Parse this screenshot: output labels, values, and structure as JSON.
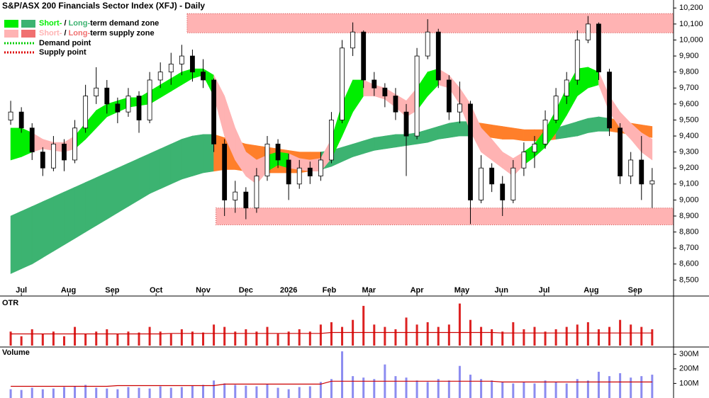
{
  "chart_data": {
    "type": "candlestick",
    "title": "S&P/ASX 200 Financials Sector Index (XFJ) - Daily",
    "legend": [
      {
        "parts": [
          "Short-",
          " / ",
          "Long-",
          "term demand zone"
        ],
        "colors": [
          "#00ee00",
          "#3cb371"
        ]
      },
      {
        "parts": [
          "Short-",
          " / ",
          "Long-",
          "term supply zone"
        ],
        "colors": [
          "#ffb3b3",
          "#f07070"
        ]
      },
      {
        "text": "Demand point",
        "color": "#00cc00"
      },
      {
        "text": "Supply point",
        "color": "#dd0000"
      }
    ],
    "x": [
      0,
      1,
      2,
      3,
      4,
      5,
      6,
      7,
      8,
      9,
      10,
      11,
      12,
      13,
      14,
      15,
      16,
      17,
      18,
      19,
      20,
      21,
      22,
      23,
      24,
      25,
      26,
      27,
      28,
      29,
      30,
      31,
      32,
      33,
      34,
      35,
      36,
      37,
      38,
      39,
      40,
      41,
      42,
      43,
      44,
      45,
      46,
      47,
      48,
      49,
      50,
      51,
      52,
      53,
      54,
      55,
      56,
      57,
      58,
      59,
      60
    ],
    "xlim": [
      -1,
      62
    ],
    "xticks": [
      {
        "value": 1,
        "label": "Jul"
      },
      {
        "value": 5.4,
        "label": "Aug"
      },
      {
        "value": 9.5,
        "label": "Sep"
      },
      {
        "value": 13.6,
        "label": "Oct"
      },
      {
        "value": 18,
        "label": "Nov"
      },
      {
        "value": 22,
        "label": "Dec"
      },
      {
        "value": 26,
        "label": "2026"
      },
      {
        "value": 29.8,
        "label": "Feb"
      },
      {
        "value": 33.5,
        "label": "Mar"
      },
      {
        "value": 38,
        "label": "Apr"
      },
      {
        "value": 42.2,
        "label": "May"
      },
      {
        "value": 45.9,
        "label": "Jun"
      },
      {
        "value": 49.9,
        "label": "Jul"
      },
      {
        "value": 54.3,
        "label": "Aug"
      },
      {
        "value": 58.4,
        "label": "Sep"
      }
    ],
    "ohlc": [
      [
        9500,
        9620,
        9470,
        9550
      ],
      [
        9550,
        9580,
        9420,
        9450
      ],
      [
        9450,
        9480,
        9250,
        9300
      ],
      [
        9300,
        9330,
        9150,
        9200
      ],
      [
        9200,
        9400,
        9180,
        9350
      ],
      [
        9350,
        9380,
        9180,
        9250
      ],
      [
        9250,
        9500,
        9230,
        9450
      ],
      [
        9450,
        9720,
        9420,
        9650
      ],
      [
        9650,
        9830,
        9600,
        9700
      ],
      [
        9700,
        9750,
        9540,
        9600
      ],
      [
        9600,
        9640,
        9480,
        9550
      ],
      [
        9550,
        9700,
        9520,
        9650
      ],
      [
        9650,
        9680,
        9420,
        9500
      ],
      [
        9500,
        9800,
        9480,
        9750
      ],
      [
        9750,
        9860,
        9700,
        9800
      ],
      [
        9800,
        9920,
        9720,
        9850
      ],
      [
        9850,
        9970,
        9780,
        9900
      ],
      [
        9900,
        9940,
        9740,
        9800
      ],
      [
        9800,
        9880,
        9700,
        9750
      ],
      [
        9750,
        9760,
        9300,
        9350
      ],
      [
        9350,
        9380,
        8900,
        9000
      ],
      [
        9000,
        9120,
        8920,
        9050
      ],
      [
        9050,
        9080,
        8880,
        8950
      ],
      [
        8950,
        9200,
        8920,
        9150
      ],
      [
        9150,
        9400,
        9120,
        9350
      ],
      [
        9350,
        9380,
        9200,
        9250
      ],
      [
        9250,
        9290,
        9000,
        9100
      ],
      [
        9100,
        9250,
        9070,
        9200
      ],
      [
        9200,
        9240,
        9100,
        9150
      ],
      [
        9150,
        9300,
        9120,
        9250
      ],
      [
        9250,
        9550,
        9230,
        9500
      ],
      [
        9500,
        10000,
        9480,
        9950
      ],
      [
        9950,
        10110,
        9900,
        10050
      ],
      [
        10050,
        10060,
        9700,
        9750
      ],
      [
        9750,
        9800,
        9650,
        9700
      ],
      [
        9700,
        9730,
        9580,
        9650
      ],
      [
        9650,
        9700,
        9500,
        9550
      ],
      [
        9550,
        9600,
        9150,
        9400
      ],
      [
        9400,
        9950,
        9380,
        9900
      ],
      [
        9900,
        10130,
        9880,
        10050
      ],
      [
        10050,
        10070,
        9700,
        9750
      ],
      [
        9750,
        9780,
        9500,
        9550
      ],
      [
        9550,
        9740,
        9480,
        9600
      ],
      [
        9600,
        9620,
        8850,
        9000
      ],
      [
        9000,
        9280,
        8980,
        9200
      ],
      [
        9200,
        9230,
        9050,
        9100
      ],
      [
        9100,
        9150,
        8900,
        9000
      ],
      [
        9000,
        9250,
        8980,
        9200
      ],
      [
        9200,
        9360,
        9150,
        9300
      ],
      [
        9300,
        9400,
        9200,
        9350
      ],
      [
        9350,
        9560,
        9320,
        9500
      ],
      [
        9500,
        9700,
        9480,
        9650
      ],
      [
        9650,
        9800,
        9600,
        9750
      ],
      [
        9750,
        10060,
        9720,
        10000
      ],
      [
        10000,
        10150,
        9980,
        10100
      ],
      [
        10100,
        10110,
        9750,
        9800
      ],
      [
        9800,
        9820,
        9400,
        9450
      ],
      [
        9450,
        9480,
        9100,
        9150
      ],
      [
        9150,
        9300,
        9100,
        9250
      ],
      [
        9250,
        9400,
        9000,
        9100
      ],
      [
        9100,
        9200,
        8950,
        9120
      ]
    ],
    "ylim": [
      8400,
      10250
    ],
    "yticks": [
      {
        "value": 8500,
        "label": "8,500"
      },
      {
        "value": 8600,
        "label": "8,600"
      },
      {
        "value": 8700,
        "label": "8,700"
      },
      {
        "value": 8800,
        "label": "8,800"
      },
      {
        "value": 8900,
        "label": "8,900"
      },
      {
        "value": 9000,
        "label": "9,000"
      },
      {
        "value": 9100,
        "label": "9,100"
      },
      {
        "value": 9200,
        "label": "9,200"
      },
      {
        "value": 9300,
        "label": "9,300"
      },
      {
        "value": 9400,
        "label": "9,400"
      },
      {
        "value": 9500,
        "label": "9,500"
      },
      {
        "value": 9600,
        "label": "9,600"
      },
      {
        "value": 9700,
        "label": "9,700"
      },
      {
        "value": 9800,
        "label": "9,800"
      },
      {
        "value": 9900,
        "label": "9,900"
      },
      {
        "value": 10000,
        "label": "10,000"
      },
      {
        "value": 10100,
        "label": "10,100"
      },
      {
        "value": 10200,
        "label": "10,200"
      }
    ],
    "long_term": {
      "upper": [
        8900,
        8930,
        8960,
        8990,
        9020,
        9050,
        9080,
        9110,
        9140,
        9170,
        9200,
        9230,
        9260,
        9290,
        9320,
        9350,
        9380,
        9400,
        9410,
        9410,
        9390,
        9370,
        9350,
        9340,
        9330,
        9320,
        9310,
        9300,
        9300,
        9300,
        9310,
        9330,
        9350,
        9370,
        9390,
        9400,
        9410,
        9410,
        9420,
        9440,
        9460,
        9480,
        9490,
        9490,
        9480,
        9470,
        9460,
        9450,
        9440,
        9440,
        9440,
        9450,
        9470,
        9490,
        9510,
        9520,
        9510,
        9500,
        9480,
        9470,
        9460
      ],
      "lower": [
        8540,
        8570,
        8600,
        8640,
        8680,
        8720,
        8760,
        8800,
        8840,
        8880,
        8920,
        8960,
        9000,
        9040,
        9070,
        9100,
        9130,
        9150,
        9170,
        9180,
        9190,
        9190,
        9180,
        9170,
        9170,
        9170,
        9170,
        9170,
        9180,
        9190,
        9210,
        9240,
        9270,
        9290,
        9310,
        9320,
        9330,
        9340,
        9350,
        9360,
        9380,
        9390,
        9400,
        9400,
        9400,
        9390,
        9380,
        9380,
        9370,
        9370,
        9370,
        9380,
        9390,
        9400,
        9420,
        9430,
        9430,
        9420,
        9410,
        9400,
        9390
      ],
      "colors": [
        "#3cb371",
        "#3cb371",
        "#3cb371",
        "#3cb371",
        "#3cb371",
        "#3cb371",
        "#3cb371",
        "#3cb371",
        "#3cb371",
        "#3cb371",
        "#3cb371",
        "#3cb371",
        "#3cb371",
        "#3cb371",
        "#3cb371",
        "#3cb371",
        "#3cb371",
        "#3cb371",
        "#3cb371",
        "#ff7f2a",
        "#ff7f2a",
        "#ff7f2a",
        "#ff7f2a",
        "#ff7f2a",
        "#ff7f2a",
        "#ff7f2a",
        "#ff7f2a",
        "#ff7f2a",
        "#ff7f2a",
        "#3cb371",
        "#3cb371",
        "#3cb371",
        "#3cb371",
        "#3cb371",
        "#3cb371",
        "#3cb371",
        "#3cb371",
        "#3cb371",
        "#3cb371",
        "#3cb371",
        "#3cb371",
        "#3cb371",
        "#3cb371",
        "#ff7f2a",
        "#ff7f2a",
        "#ff7f2a",
        "#ff7f2a",
        "#ff7f2a",
        "#ff7f2a",
        "#ff7f2a",
        "#ff7f2a",
        "#3cb371",
        "#3cb371",
        "#3cb371",
        "#3cb371",
        "#3cb371",
        "#ff7f2a",
        "#ff7f2a",
        "#ff7f2a",
        "#ff7f2a",
        "#ff7f2a"
      ]
    },
    "short_term": {
      "upper": [
        9450,
        9450,
        9420,
        9380,
        9360,
        9360,
        9400,
        9480,
        9560,
        9600,
        9620,
        9640,
        9640,
        9680,
        9720,
        9760,
        9800,
        9820,
        9820,
        9780,
        9650,
        9450,
        9300,
        9250,
        9280,
        9300,
        9290,
        9260,
        9250,
        9260,
        9380,
        9600,
        9750,
        9750,
        9720,
        9700,
        9660,
        9620,
        9700,
        9800,
        9820,
        9780,
        9700,
        9600,
        9450,
        9380,
        9300,
        9260,
        9300,
        9350,
        9440,
        9560,
        9700,
        9820,
        9830,
        9800,
        9650,
        9550,
        9480,
        9420,
        9380
      ],
      "lower": [
        9250,
        9270,
        9300,
        9320,
        9310,
        9300,
        9320,
        9380,
        9450,
        9520,
        9550,
        9580,
        9590,
        9600,
        9640,
        9680,
        9720,
        9760,
        9780,
        9650,
        9400,
        9250,
        9150,
        9100,
        9180,
        9220,
        9200,
        9190,
        9180,
        9180,
        9260,
        9400,
        9550,
        9650,
        9650,
        9630,
        9580,
        9520,
        9560,
        9650,
        9720,
        9700,
        9600,
        9430,
        9300,
        9250,
        9200,
        9150,
        9220,
        9270,
        9330,
        9420,
        9530,
        9650,
        9700,
        9720,
        9550,
        9450,
        9380,
        9300,
        9250
      ],
      "colors": [
        "#00ee00",
        "#00ee00",
        "#ffb3b3",
        "#ffb3b3",
        "#ffb3b3",
        "#ffb3b3",
        "#00ee00",
        "#00ee00",
        "#00ee00",
        "#00ee00",
        "#00ee00",
        "#00ee00",
        "#00ee00",
        "#00ee00",
        "#00ee00",
        "#00ee00",
        "#00ee00",
        "#00ee00",
        "#00ee00",
        "#ffb3b3",
        "#ffb3b3",
        "#ffb3b3",
        "#ffb3b3",
        "#ffb3b3",
        "#00ee00",
        "#00ee00",
        "#ffb3b3",
        "#ffb3b3",
        "#ffb3b3",
        "#ffb3b3",
        "#00ee00",
        "#00ee00",
        "#00ee00",
        "#ffb3b3",
        "#ffb3b3",
        "#ffb3b3",
        "#ffb3b3",
        "#ffb3b3",
        "#00ee00",
        "#00ee00",
        "#ffb3b3",
        "#ffb3b3",
        "#ffb3b3",
        "#ffb3b3",
        "#ffb3b3",
        "#ffb3b3",
        "#ffb3b3",
        "#ffb3b3",
        "#00ee00",
        "#00ee00",
        "#00ee00",
        "#00ee00",
        "#00ee00",
        "#00ee00",
        "#00ee00",
        "#ffb3b3",
        "#ffb3b3",
        "#ffb3b3",
        "#ffb3b3",
        "#ffb3b3",
        "#ffb3b3"
      ]
    },
    "zones": [
      {
        "x0": 16.5,
        "top": 10165,
        "bottom": 10045,
        "color": "#ffb3b3"
      },
      {
        "x0": 19.2,
        "top": 8950,
        "bottom": 8845,
        "color": "#ffb3b3"
      }
    ],
    "panels": [
      {
        "label": "OTR",
        "label_color": "#c03030",
        "color": "#dd2222",
        "avg_color": "#cc0000",
        "ylim": [
          0,
          100
        ],
        "values": [
          30,
          20,
          35,
          25,
          30,
          20,
          40,
          25,
          30,
          35,
          25,
          30,
          28,
          40,
          30,
          25,
          35,
          30,
          28,
          45,
          40,
          30,
          35,
          30,
          40,
          25,
          30,
          35,
          30,
          45,
          50,
          40,
          55,
          85,
          45,
          40,
          35,
          60,
          45,
          50,
          40,
          45,
          90,
          55,
          40,
          35,
          30,
          50,
          35,
          40,
          30,
          35,
          40,
          45,
          50,
          35,
          40,
          55,
          45,
          40,
          35
        ],
        "average": [
          25,
          25,
          25,
          25,
          25,
          25,
          25,
          25,
          25,
          25,
          25,
          25,
          25,
          25,
          25,
          26,
          26,
          26,
          26,
          26,
          26,
          26,
          26,
          26,
          26,
          26,
          26,
          26,
          26,
          26,
          28,
          28,
          28,
          28,
          28,
          28,
          28,
          28,
          28,
          28,
          28,
          28,
          28,
          28,
          28,
          28,
          27,
          27,
          27,
          27,
          27,
          27,
          27,
          27,
          27,
          27,
          27,
          27,
          27,
          27,
          27
        ]
      },
      {
        "label": "Volume",
        "label_color": "#6060c0",
        "color": "#8c8cf0",
        "avg_color": "#cc0000",
        "ylim": [
          0,
          340000000
        ],
        "yticks": [
          {
            "value": 300000000,
            "label": "300M"
          },
          {
            "value": 200000000,
            "label": "200M"
          },
          {
            "value": 100000000,
            "label": "100M"
          }
        ],
        "values": [
          60000000,
          55000000,
          70000000,
          60000000,
          65000000,
          75000000,
          80000000,
          90000000,
          70000000,
          65000000,
          60000000,
          75000000,
          70000000,
          65000000,
          80000000,
          70000000,
          75000000,
          85000000,
          90000000,
          120000000,
          100000000,
          90000000,
          85000000,
          80000000,
          95000000,
          70000000,
          60000000,
          75000000,
          80000000,
          110000000,
          130000000,
          320000000,
          150000000,
          140000000,
          130000000,
          230000000,
          150000000,
          140000000,
          120000000,
          110000000,
          130000000,
          120000000,
          220000000,
          160000000,
          130000000,
          120000000,
          110000000,
          100000000,
          110000000,
          100000000,
          120000000,
          110000000,
          100000000,
          130000000,
          120000000,
          180000000,
          150000000,
          170000000,
          140000000,
          150000000,
          160000000
        ],
        "average": [
          80000000,
          80000000,
          80000000,
          80000000,
          80000000,
          80000000,
          80000000,
          80000000,
          80000000,
          80000000,
          85000000,
          85000000,
          85000000,
          85000000,
          85000000,
          85000000,
          85000000,
          85000000,
          85000000,
          85000000,
          95000000,
          95000000,
          95000000,
          95000000,
          95000000,
          95000000,
          95000000,
          95000000,
          95000000,
          95000000,
          115000000,
          115000000,
          115000000,
          115000000,
          115000000,
          115000000,
          115000000,
          115000000,
          115000000,
          115000000,
          115000000,
          115000000,
          115000000,
          115000000,
          115000000,
          115000000,
          110000000,
          110000000,
          110000000,
          110000000,
          110000000,
          110000000,
          110000000,
          110000000,
          110000000,
          110000000,
          110000000,
          110000000,
          110000000,
          110000000,
          110000000
        ]
      }
    ]
  }
}
